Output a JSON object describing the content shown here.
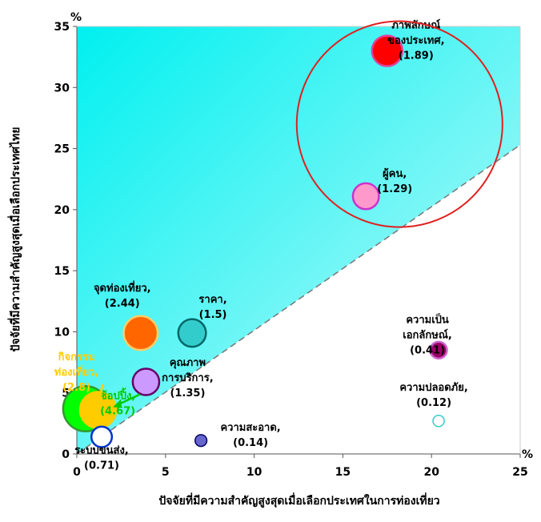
{
  "chart_data": {
    "type": "scatter",
    "title": "",
    "xlabel": "ปัจจัยที่มีความสำคัญสูงสุดเมื่อเลือกประเทศในการท่องเที่ยว",
    "ylabel": "ปัจจัยที่มีความสำคัญสูงสุดเมื่อเลือกประเทศไทย",
    "x_unit": "%",
    "y_unit": "%",
    "xlim": [
      0,
      25
    ],
    "ylim": [
      0,
      35
    ],
    "xticks": [
      "0",
      "5",
      "10",
      "15",
      "20",
      "25"
    ],
    "yticks": [
      "0",
      "5",
      "10",
      "15",
      "20",
      "25",
      "30",
      "35"
    ],
    "grid": false,
    "reference_line": {
      "from": [
        0,
        0
      ],
      "to": [
        25,
        25.3
      ],
      "style": "dashed"
    },
    "highlight_circle": {
      "center": [
        18.2,
        27
      ],
      "radius_x_units": 5.8
    },
    "points": [
      {
        "x": 17.5,
        "y": 33.0,
        "size": 1.89,
        "label_lines": [
          "ภาพลักษณ์",
          "ของประเทศ,",
          "(1.89)"
        ],
        "color": "#ff0000",
        "border": "#e0409a",
        "label_color": "#000000"
      },
      {
        "x": 16.3,
        "y": 21.1,
        "size": 1.29,
        "label_lines": [
          "ผู้คน,",
          "(1.29)"
        ],
        "color": "#ff99cc",
        "border": "#cc33cc",
        "label_color": "#000000"
      },
      {
        "x": 3.6,
        "y": 9.9,
        "size": 2.44,
        "label_lines": [
          "จุดท่องเที่ยว,",
          "(2.44)"
        ],
        "color": "#ff6600",
        "border": "#ffcc66",
        "label_color": "#000000"
      },
      {
        "x": 6.5,
        "y": 9.9,
        "size": 1.5,
        "label_lines": [
          "ราคา,",
          "(1.5)"
        ],
        "color": "#33cccc",
        "border": "#006666",
        "label_color": "#000000"
      },
      {
        "x": 1.2,
        "y": 3.6,
        "size": 2.8,
        "label_lines": [
          "กิจกรรม",
          "ท่องเที่ยว,",
          "(2.8)"
        ],
        "color": "#ffcc00",
        "border": "#ffcc00",
        "label_color": "#ffcc00"
      },
      {
        "x": 0.5,
        "y": 3.7,
        "size": 4.67,
        "label_lines": [
          "ช้อปปิ้ง,",
          "(4.67)"
        ],
        "color": "#00ff00",
        "border": "#339933",
        "label_color": "#00cc00"
      },
      {
        "x": 3.9,
        "y": 5.9,
        "size": 1.35,
        "label_lines": [
          "คุณภาพ",
          "การบริการ,",
          "(1.35)"
        ],
        "color": "#cc99ff",
        "border": "#660066",
        "label_color": "#000000"
      },
      {
        "x": 1.4,
        "y": 1.4,
        "size": 0.71,
        "label_lines": [
          "ระบบขนส่ง,",
          "(0.71)"
        ],
        "color": "#ffffff",
        "border": "#0033cc",
        "label_color": "#000000"
      },
      {
        "x": 7.0,
        "y": 1.1,
        "size": 0.14,
        "label_lines": [
          "ความสะอาด,",
          "(0.14)"
        ],
        "color": "#6666cc",
        "border": "#000066",
        "label_color": "#000000"
      },
      {
        "x": 20.4,
        "y": 8.5,
        "size": 0.41,
        "label_lines": [
          "ความเป็น",
          "เอกลักษณ์,",
          "(0.41)"
        ],
        "color": "#990066",
        "border": "#cc66cc",
        "label_color": "#000000"
      },
      {
        "x": 20.4,
        "y": 2.7,
        "size": 0.12,
        "label_lines": [
          "ความปลอดภัย,",
          "(0.12)"
        ],
        "color": "#ffffff",
        "border": "#33cccc",
        "label_color": "#000000"
      }
    ]
  }
}
